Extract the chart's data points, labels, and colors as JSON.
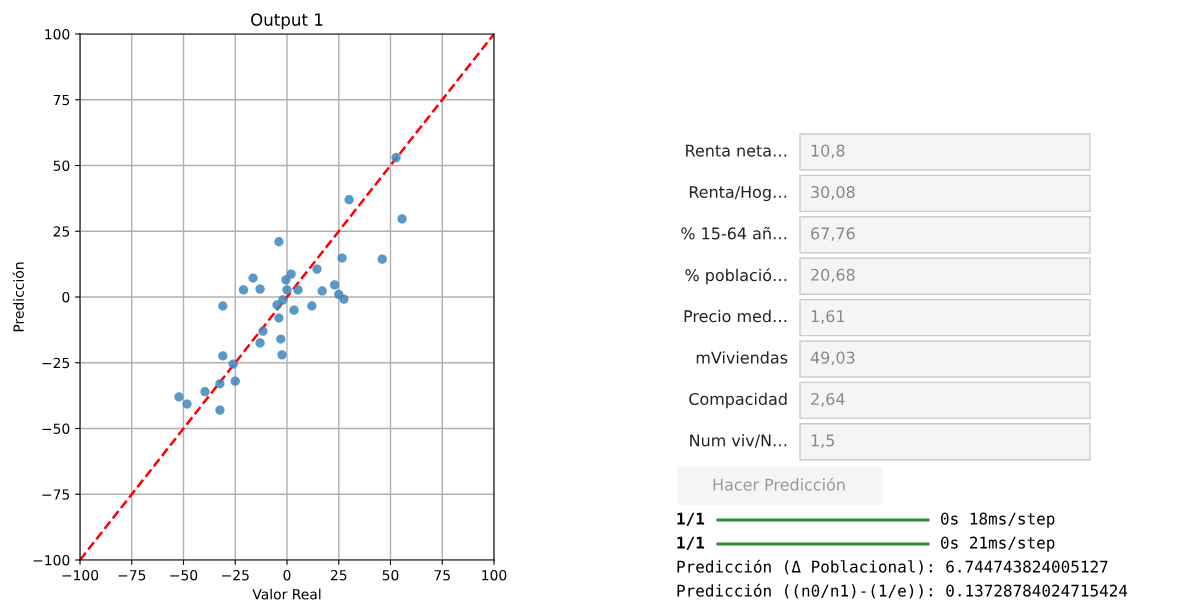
{
  "chart_data": [
    {
      "type": "scatter",
      "title": "Output 1",
      "xlabel": "Valor Real",
      "ylabel": "Predicción",
      "xlim": [
        -100,
        100
      ],
      "ylim": [
        -100,
        100
      ],
      "xticks": [
        {
          "value": -100,
          "label": "−100"
        },
        {
          "value": -75,
          "label": "−75"
        },
        {
          "value": -50,
          "label": "−50"
        },
        {
          "value": -25,
          "label": "−25"
        },
        0,
        25,
        50,
        75,
        100
      ],
      "yticks": [
        {
          "value": -100,
          "label": "−100"
        },
        {
          "value": -75,
          "label": "−75"
        },
        {
          "value": -50,
          "label": "−50"
        },
        {
          "value": -25,
          "label": "−25"
        },
        0,
        25,
        50,
        75,
        100
      ],
      "grid": true,
      "series": [
        {
          "type": "scatter",
          "color": "#3f86bc",
          "marker": "circle",
          "x": [
            -52.2,
            -48.3,
            -39.6,
            -32.4,
            -32.4,
            -31,
            -31,
            -26,
            -25,
            -21,
            -16.4,
            -13,
            -13,
            -11.6,
            -3.9,
            -4.8,
            -3.9,
            -3,
            -2.4,
            -2,
            -0.5,
            0,
            2,
            3.4,
            5.3,
            12,
            14.5,
            17,
            23,
            25,
            26.6,
            27.5,
            30,
            46,
            52.7,
            55.6
          ],
          "values": [
            -38,
            -40.7,
            -36,
            -33,
            -43,
            -22.4,
            -3.4,
            -25.5,
            -32,
            2.7,
            7.2,
            3,
            -17.5,
            -13,
            21,
            -3,
            -8,
            -16,
            -22,
            -1.1,
            6.5,
            2.7,
            8.7,
            -5,
            2.7,
            -3.4,
            10.6,
            2.3,
            4.6,
            1,
            14.8,
            -0.8,
            37,
            14.4,
            53,
            29.7
          ]
        },
        {
          "type": "line",
          "color": "#ff0000",
          "line_style": "dashed",
          "marker": "none",
          "x": [
            -100,
            100
          ],
          "values": [
            -100,
            100
          ]
        }
      ]
    },
    {
      "type": "other",
      "annotations": [
        "Renta neta…",
        "10,8",
        "Renta/Hog…",
        "30,08",
        "% 15-64 añ…",
        "67,76",
        "% població…",
        "20,68",
        "Precio med…",
        "1,61",
        "mViviendas",
        "49,03",
        "Compacidad",
        "2,64",
        "Num viv/N…",
        "1,5",
        "Hacer Predicción",
        "1/1",
        "0s 18ms/step",
        "1/1",
        "0s 21ms/step",
        "Predicción (Δ Poblacional): 6.744743824005127",
        "Predicción ((n0/n1)-(1/e)): 0.13728784024715424"
      ]
    }
  ]
}
